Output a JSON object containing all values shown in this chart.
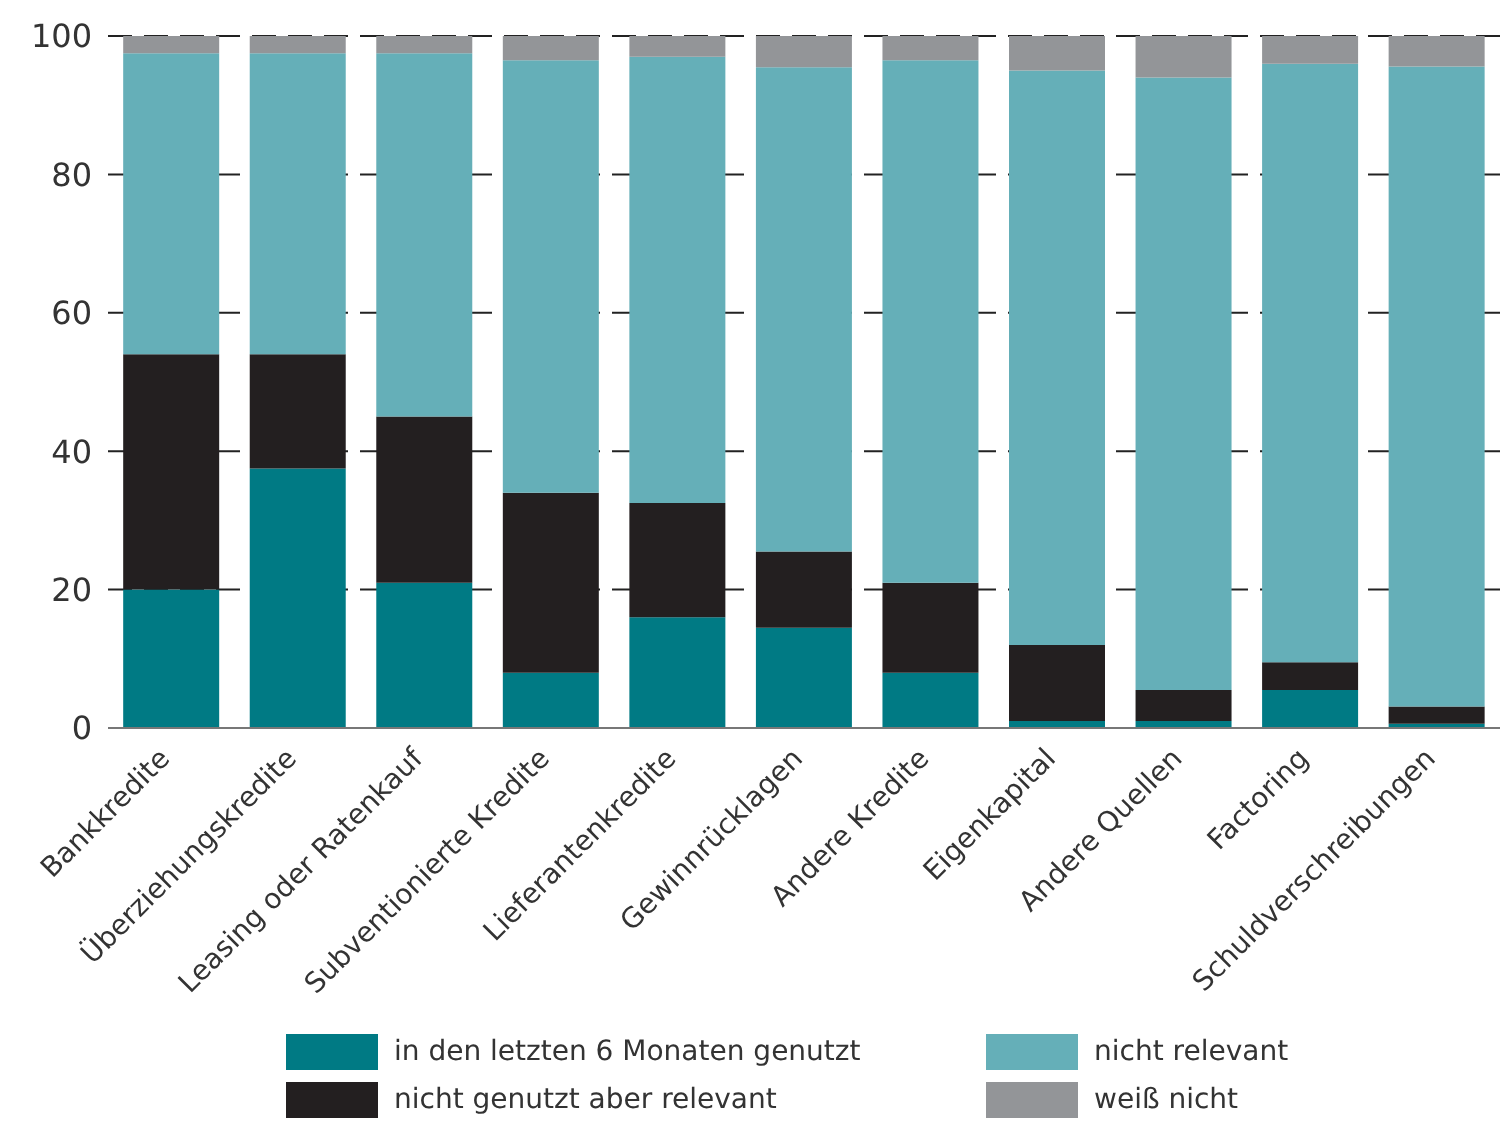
{
  "chart_data": {
    "type": "bar",
    "stacked": true,
    "categories": [
      "Bankkredite",
      "Überziehungskredite",
      "Leasing oder Ratenkauf",
      "Subventionierte Kredite",
      "Lieferantenkredite",
      "Gewinnrücklagen",
      "Andere Kredite",
      "Eigenkapital",
      "Andere Quellen",
      "Factoring",
      "Schuldverschreibungen"
    ],
    "series": [
      {
        "name": "in den letzten 6 Monaten genutzt",
        "color": "#007a84",
        "values": [
          20,
          37.5,
          21,
          8,
          16,
          14.5,
          8,
          1,
          1,
          5.5,
          0.6
        ]
      },
      {
        "name": "nicht genutzt aber relevant",
        "color": "#231f20",
        "values": [
          34,
          16.5,
          24,
          26,
          16.5,
          11,
          13,
          11,
          4.5,
          4,
          2.5
        ]
      },
      {
        "name": "nicht relevant",
        "color": "#65afb8",
        "values": [
          43.5,
          43.5,
          52.5,
          62.5,
          64.5,
          70,
          75.5,
          83,
          88.5,
          86.5,
          92.5
        ]
      },
      {
        "name": "weiß nicht",
        "color": "#939598",
        "values": [
          2.5,
          2.5,
          2.5,
          3.5,
          3,
          4.5,
          3.5,
          5,
          6,
          4,
          4.5
        ]
      }
    ],
    "ylim": [
      0,
      100
    ],
    "yticks": [
      0,
      20,
      40,
      60,
      80,
      100
    ],
    "grid": "y",
    "legend": "bottom"
  }
}
